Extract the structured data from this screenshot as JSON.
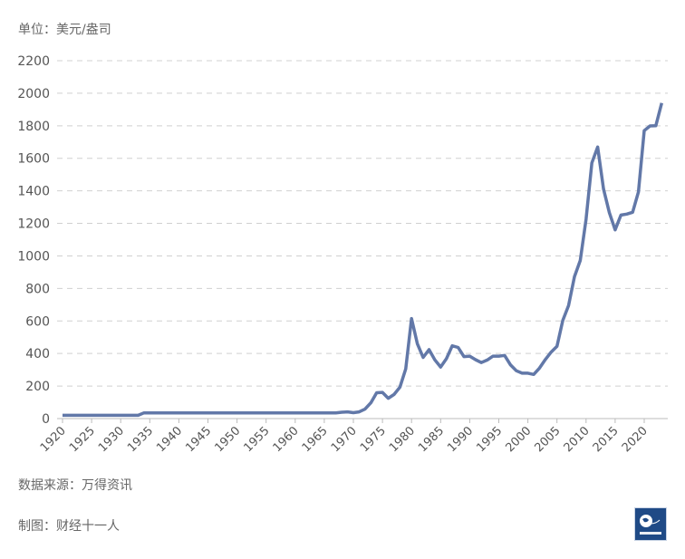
{
  "chart_data": {
    "type": "line",
    "unit_label": "单位：美元/盎司",
    "source": "数据来源：万得资讯",
    "credit": "制图：财经十一人",
    "logo_text": "财经十一人",
    "color": "#6278a8",
    "ylim": [
      0,
      2200
    ],
    "yticks": [
      0,
      200,
      400,
      600,
      800,
      1000,
      1200,
      1400,
      1600,
      1800,
      2000,
      2200
    ],
    "xticks": [
      1920,
      1925,
      1930,
      1935,
      1940,
      1945,
      1950,
      1955,
      1960,
      1965,
      1970,
      1975,
      1980,
      1985,
      1990,
      1995,
      2000,
      2005,
      2010,
      2015,
      2020
    ],
    "grid": true,
    "x": [
      1920,
      1921,
      1922,
      1923,
      1924,
      1925,
      1926,
      1927,
      1928,
      1929,
      1930,
      1931,
      1932,
      1933,
      1934,
      1935,
      1936,
      1937,
      1938,
      1939,
      1940,
      1941,
      1942,
      1943,
      1944,
      1945,
      1946,
      1947,
      1948,
      1949,
      1950,
      1951,
      1952,
      1953,
      1954,
      1955,
      1956,
      1957,
      1958,
      1959,
      1960,
      1961,
      1962,
      1963,
      1964,
      1965,
      1966,
      1967,
      1968,
      1969,
      1970,
      1971,
      1972,
      1973,
      1974,
      1975,
      1976,
      1977,
      1978,
      1979,
      1980,
      1981,
      1982,
      1983,
      1984,
      1985,
      1986,
      1987,
      1988,
      1989,
      1990,
      1991,
      1992,
      1993,
      1994,
      1995,
      1996,
      1997,
      1998,
      1999,
      2000,
      2001,
      2002,
      2003,
      2004,
      2005,
      2006,
      2007,
      2008,
      2009,
      2010,
      2011,
      2012,
      2013,
      2014,
      2015,
      2016,
      2017,
      2018,
      2019,
      2020,
      2021,
      2022,
      2023
    ],
    "values": [
      20,
      20,
      20,
      20,
      20,
      20,
      20,
      20,
      20,
      20,
      20,
      20,
      20,
      20,
      35,
      35,
      35,
      35,
      35,
      35,
      35,
      35,
      35,
      35,
      35,
      35,
      35,
      35,
      35,
      35,
      35,
      35,
      35,
      35,
      35,
      35,
      35,
      35,
      35,
      35,
      35,
      35,
      35,
      35,
      35,
      35,
      35,
      35,
      39,
      41,
      36,
      41,
      58,
      97,
      159,
      161,
      125,
      148,
      193,
      306,
      615,
      460,
      376,
      424,
      361,
      317,
      368,
      447,
      437,
      381,
      384,
      362,
      344,
      360,
      384,
      384,
      388,
      331,
      294,
      279,
      279,
      271,
      310,
      363,
      409,
      444,
      603,
      695,
      872,
      972,
      1225,
      1572,
      1669,
      1411,
      1266,
      1160,
      1251,
      1257,
      1268,
      1393,
      1770,
      1799,
      1800,
      1940
    ]
  }
}
